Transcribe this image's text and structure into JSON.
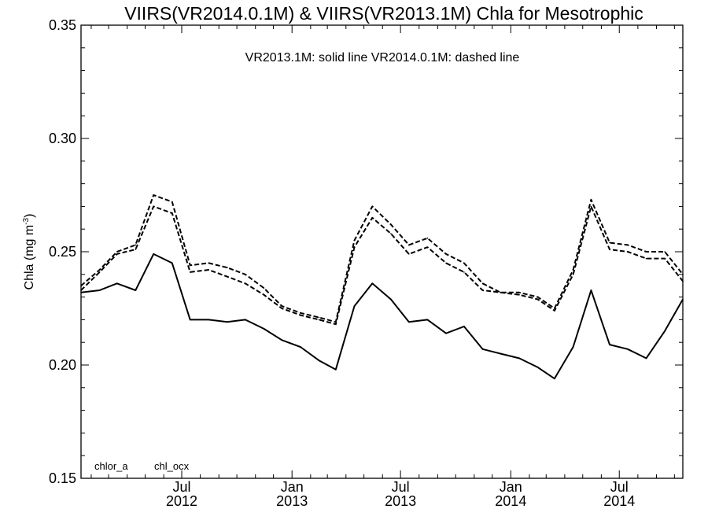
{
  "chart_data": {
    "type": "line",
    "title": "VIIRS(VR2014.0.1M) & VIIRS(VR2013.1M)  Chla for Mesotrophic",
    "annotation": "VR2013.1M: solid line   VR2014.0.1M: dashed line",
    "ylabel": {
      "main": "Chla (mg m",
      "sup": "-3",
      "close": ")"
    },
    "xlabel": "",
    "ylim": [
      0.15,
      0.35
    ],
    "yticks": [
      {
        "value": 0.15,
        "label": "0.15"
      },
      {
        "value": 0.2,
        "label": "0.20"
      },
      {
        "value": 0.25,
        "label": "0.25"
      },
      {
        "value": 0.3,
        "label": "0.30"
      },
      {
        "value": 0.35,
        "label": "0.35"
      }
    ],
    "xlim": [
      "2012-01-15",
      "2014-10-15"
    ],
    "x": [
      "2012-01",
      "2012-02",
      "2012-03",
      "2012-04",
      "2012-05",
      "2012-06",
      "2012-07",
      "2012-08",
      "2012-09",
      "2012-10",
      "2012-11",
      "2012-12",
      "2013-01",
      "2013-02",
      "2013-03",
      "2013-04",
      "2013-05",
      "2013-06",
      "2013-07",
      "2013-08",
      "2013-09",
      "2013-10",
      "2013-11",
      "2013-12",
      "2014-01",
      "2014-02",
      "2014-03",
      "2014-04",
      "2014-05",
      "2014-06",
      "2014-07",
      "2014-08",
      "2014-09",
      "2014-10"
    ],
    "xticks": [
      {
        "date": "2012-07-01",
        "label1": "Jul",
        "label2": "2012"
      },
      {
        "date": "2013-01-01",
        "label1": "Jan",
        "label2": "2013"
      },
      {
        "date": "2013-07-01",
        "label1": "Jul",
        "label2": "2013"
      },
      {
        "date": "2014-01-01",
        "label1": "Jan",
        "label2": "2014"
      },
      {
        "date": "2014-07-01",
        "label1": "Jul",
        "label2": "2014"
      }
    ],
    "series": [
      {
        "style": "solid",
        "values": [
          0.232,
          0.233,
          0.236,
          0.233,
          0.249,
          0.245,
          0.22,
          0.22,
          0.219,
          0.22,
          0.216,
          0.211,
          0.208,
          0.202,
          0.198,
          0.226,
          0.236,
          0.229,
          0.219,
          0.22,
          0.214,
          0.217,
          0.207,
          0.205,
          0.203,
          0.199,
          0.194,
          0.208,
          0.233,
          0.209,
          0.207,
          0.203,
          0.215,
          0.229
        ]
      },
      {
        "style": "dashed",
        "values": [
          0.235,
          0.242,
          0.25,
          0.253,
          0.275,
          0.272,
          0.244,
          0.245,
          0.243,
          0.24,
          0.234,
          0.226,
          0.223,
          0.221,
          0.219,
          0.255,
          0.27,
          0.262,
          0.253,
          0.256,
          0.249,
          0.245,
          0.236,
          0.232,
          0.232,
          0.23,
          0.225,
          0.242,
          0.273,
          0.254,
          0.253,
          0.25,
          0.25,
          0.24
        ]
      },
      {
        "style": "dashed",
        "values": [
          0.233,
          0.241,
          0.249,
          0.251,
          0.27,
          0.267,
          0.241,
          0.242,
          0.239,
          0.236,
          0.231,
          0.225,
          0.222,
          0.22,
          0.218,
          0.252,
          0.265,
          0.258,
          0.249,
          0.252,
          0.245,
          0.241,
          0.233,
          0.232,
          0.231,
          0.229,
          0.224,
          0.24,
          0.27,
          0.251,
          0.25,
          0.247,
          0.247,
          0.237
        ]
      }
    ],
    "legend_labels": [
      "chlor_a",
      "chl_ocx"
    ],
    "grid": false
  }
}
